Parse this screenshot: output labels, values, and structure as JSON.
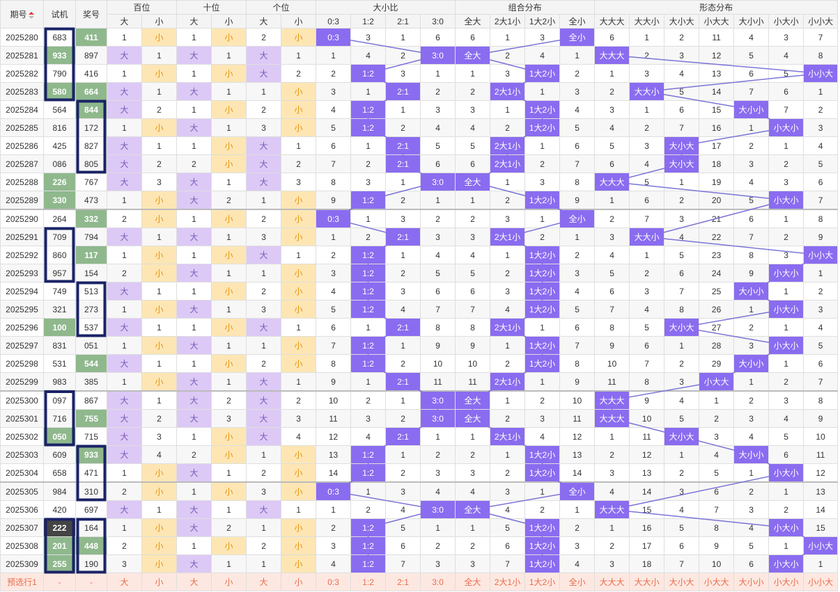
{
  "header": {
    "period": "期号",
    "trial": "试机",
    "prize": "奖号",
    "groups": {
      "hundreds": "百位",
      "tens": "十位",
      "units": "个位",
      "ratio": "大小比",
      "combo": "组合分布",
      "shape": "形态分布"
    },
    "big": "大",
    "small": "小",
    "ratio_cols": [
      "0:3",
      "1:2",
      "2:1",
      "3:0"
    ],
    "combo_cols": [
      "全大",
      "2大1小",
      "1大2小",
      "全小"
    ],
    "shape_cols": [
      "大大大",
      "大大小",
      "大小大",
      "小大大",
      "大小小",
      "小大小",
      "小小大"
    ]
  },
  "rows": [
    {
      "p": "2025280",
      "t": "683",
      "w": "411",
      "h": [
        "1",
        "小"
      ],
      "te": [
        "1",
        "小"
      ],
      "u": [
        "2",
        "小"
      ],
      "r": [
        "0:3",
        "3",
        "1",
        "6"
      ],
      "c": [
        "6",
        "1",
        "3",
        "全小"
      ],
      "s": [
        "6",
        "1",
        "2",
        "11",
        "4",
        "3",
        "7"
      ]
    },
    {
      "p": "2025281",
      "t": "933",
      "w": "897",
      "h": [
        "大",
        "1"
      ],
      "te": [
        "大",
        "1"
      ],
      "u": [
        "大",
        "1"
      ],
      "r": [
        "1",
        "4",
        "2",
        "3:0"
      ],
      "c": [
        "全大",
        "2",
        "4",
        "1"
      ],
      "s": [
        "大大大",
        "2",
        "3",
        "12",
        "5",
        "4",
        "8"
      ]
    },
    {
      "p": "2025282",
      "t": "790",
      "w": "416",
      "h": [
        "1",
        "小"
      ],
      "te": [
        "1",
        "小"
      ],
      "u": [
        "大",
        "2"
      ],
      "r": [
        "2",
        "1:2",
        "3",
        "1"
      ],
      "c": [
        "1",
        "3",
        "1大2小",
        "2"
      ],
      "s": [
        "1",
        "3",
        "4",
        "13",
        "6",
        "5",
        "小小大"
      ]
    },
    {
      "p": "2025283",
      "t": "580",
      "w": "664",
      "h": [
        "大",
        "1"
      ],
      "te": [
        "大",
        "1"
      ],
      "u": [
        "1",
        "小"
      ],
      "r": [
        "3",
        "1",
        "2:1",
        "2"
      ],
      "c": [
        "2",
        "2大1小",
        "1",
        "3"
      ],
      "s": [
        "2",
        "大大小",
        "5",
        "14",
        "7",
        "6",
        "1"
      ]
    },
    {
      "p": "2025284",
      "t": "564",
      "w": "844",
      "h": [
        "大",
        "2"
      ],
      "te": [
        "1",
        "小"
      ],
      "u": [
        "2",
        "小"
      ],
      "r": [
        "4",
        "1:2",
        "1",
        "3"
      ],
      "c": [
        "3",
        "1",
        "1大2小",
        "4"
      ],
      "s": [
        "3",
        "1",
        "6",
        "15",
        "大小小",
        "7",
        "2"
      ]
    },
    {
      "p": "2025285",
      "t": "816",
      "w": "172",
      "h": [
        "1",
        "小"
      ],
      "te": [
        "大",
        "1"
      ],
      "u": [
        "3",
        "小"
      ],
      "r": [
        "5",
        "1:2",
        "2",
        "4"
      ],
      "c": [
        "4",
        "2",
        "1大2小",
        "5"
      ],
      "s": [
        "4",
        "2",
        "7",
        "16",
        "1",
        "小大小",
        "3"
      ]
    },
    {
      "p": "2025286",
      "t": "425",
      "w": "827",
      "h": [
        "大",
        "1"
      ],
      "te": [
        "1",
        "小"
      ],
      "u": [
        "大",
        "1"
      ],
      "r": [
        "6",
        "1",
        "2:1",
        "5"
      ],
      "c": [
        "5",
        "2大1小",
        "1",
        "6"
      ],
      "s": [
        "5",
        "3",
        "大小大",
        "17",
        "2",
        "1",
        "4"
      ]
    },
    {
      "p": "2025287",
      "t": "086",
      "w": "805",
      "h": [
        "大",
        "2"
      ],
      "te": [
        "2",
        "小"
      ],
      "u": [
        "大",
        "2"
      ],
      "r": [
        "7",
        "2",
        "2:1",
        "6"
      ],
      "c": [
        "6",
        "2大1小",
        "2",
        "7"
      ],
      "s": [
        "6",
        "4",
        "大小大",
        "18",
        "3",
        "2",
        "5"
      ]
    },
    {
      "p": "2025288",
      "t": "226",
      "w": "767",
      "h": [
        "大",
        "3"
      ],
      "te": [
        "大",
        "1"
      ],
      "u": [
        "大",
        "3"
      ],
      "r": [
        "8",
        "3",
        "1",
        "3:0"
      ],
      "c": [
        "全大",
        "1",
        "3",
        "8"
      ],
      "s": [
        "大大大",
        "5",
        "1",
        "19",
        "4",
        "3",
        "6"
      ]
    },
    {
      "p": "2025289",
      "t": "330",
      "w": "473",
      "h": [
        "1",
        "小"
      ],
      "te": [
        "大",
        "2"
      ],
      "u": [
        "1",
        "小"
      ],
      "r": [
        "9",
        "1:2",
        "2",
        "1"
      ],
      "c": [
        "1",
        "2",
        "1大2小",
        "9"
      ],
      "s": [
        "1",
        "6",
        "2",
        "20",
        "5",
        "小大小",
        "7"
      ]
    },
    {
      "p": "2025290",
      "t": "264",
      "w": "332",
      "h": [
        "2",
        "小"
      ],
      "te": [
        "1",
        "小"
      ],
      "u": [
        "2",
        "小"
      ],
      "r": [
        "0:3",
        "1",
        "3",
        "2"
      ],
      "c": [
        "2",
        "3",
        "1",
        "全小"
      ],
      "s": [
        "2",
        "7",
        "3",
        "21",
        "6",
        "1",
        "8"
      ]
    },
    {
      "p": "2025291",
      "t": "709",
      "w": "794",
      "h": [
        "大",
        "1"
      ],
      "te": [
        "大",
        "1"
      ],
      "u": [
        "3",
        "小"
      ],
      "r": [
        "1",
        "2",
        "2:1",
        "3"
      ],
      "c": [
        "3",
        "2大1小",
        "2",
        "1"
      ],
      "s": [
        "3",
        "大大小",
        "4",
        "22",
        "7",
        "2",
        "9"
      ]
    },
    {
      "p": "2025292",
      "t": "860",
      "w": "117",
      "h": [
        "1",
        "小"
      ],
      "te": [
        "1",
        "小"
      ],
      "u": [
        "大",
        "1"
      ],
      "r": [
        "2",
        "1:2",
        "1",
        "4"
      ],
      "c": [
        "4",
        "1",
        "1大2小",
        "2"
      ],
      "s": [
        "4",
        "1",
        "5",
        "23",
        "8",
        "3",
        "小小大"
      ]
    },
    {
      "p": "2025293",
      "t": "957",
      "w": "154",
      "h": [
        "2",
        "小"
      ],
      "te": [
        "大",
        "1"
      ],
      "u": [
        "1",
        "小"
      ],
      "r": [
        "3",
        "1:2",
        "2",
        "5"
      ],
      "c": [
        "5",
        "2",
        "1大2小",
        "3"
      ],
      "s": [
        "5",
        "2",
        "6",
        "24",
        "9",
        "小大小",
        "1"
      ]
    },
    {
      "p": "2025294",
      "t": "749",
      "w": "513",
      "h": [
        "大",
        "1"
      ],
      "te": [
        "1",
        "小"
      ],
      "u": [
        "2",
        "小"
      ],
      "r": [
        "4",
        "1:2",
        "3",
        "6"
      ],
      "c": [
        "6",
        "3",
        "1大2小",
        "4"
      ],
      "s": [
        "6",
        "3",
        "7",
        "25",
        "大小小",
        "1",
        "2"
      ]
    },
    {
      "p": "2025295",
      "t": "321",
      "w": "273",
      "h": [
        "1",
        "小"
      ],
      "te": [
        "大",
        "1"
      ],
      "u": [
        "3",
        "小"
      ],
      "r": [
        "5",
        "1:2",
        "4",
        "7"
      ],
      "c": [
        "7",
        "4",
        "1大2小",
        "5"
      ],
      "s": [
        "7",
        "4",
        "8",
        "26",
        "1",
        "小大小",
        "3"
      ]
    },
    {
      "p": "2025296",
      "t": "100",
      "w": "537",
      "h": [
        "大",
        "1"
      ],
      "te": [
        "1",
        "小"
      ],
      "u": [
        "大",
        "1"
      ],
      "r": [
        "6",
        "1",
        "2:1",
        "8"
      ],
      "c": [
        "8",
        "2大1小",
        "1",
        "6"
      ],
      "s": [
        "8",
        "5",
        "大小大",
        "27",
        "2",
        "1",
        "4"
      ]
    },
    {
      "p": "2025297",
      "t": "831",
      "w": "051",
      "h": [
        "1",
        "小"
      ],
      "te": [
        "大",
        "1"
      ],
      "u": [
        "1",
        "小"
      ],
      "r": [
        "7",
        "1:2",
        "1",
        "9"
      ],
      "c": [
        "9",
        "1",
        "1大2小",
        "7"
      ],
      "s": [
        "9",
        "6",
        "1",
        "28",
        "3",
        "小大小",
        "5"
      ]
    },
    {
      "p": "2025298",
      "t": "531",
      "w": "544",
      "h": [
        "大",
        "1"
      ],
      "te": [
        "1",
        "小"
      ],
      "u": [
        "2",
        "小"
      ],
      "r": [
        "8",
        "1:2",
        "2",
        "10"
      ],
      "c": [
        "10",
        "2",
        "1大2小",
        "8"
      ],
      "s": [
        "10",
        "7",
        "2",
        "29",
        "大小小",
        "1",
        "6"
      ]
    },
    {
      "p": "2025299",
      "t": "983",
      "w": "385",
      "h": [
        "1",
        "小"
      ],
      "te": [
        "大",
        "1"
      ],
      "u": [
        "大",
        "1"
      ],
      "r": [
        "9",
        "1",
        "2:1",
        "11"
      ],
      "c": [
        "11",
        "2大1小",
        "1",
        "9"
      ],
      "s": [
        "11",
        "8",
        "3",
        "小大大",
        "1",
        "2",
        "7"
      ]
    },
    {
      "p": "2025300",
      "t": "097",
      "w": "867",
      "h": [
        "大",
        "1"
      ],
      "te": [
        "大",
        "2"
      ],
      "u": [
        "大",
        "2"
      ],
      "r": [
        "10",
        "2",
        "1",
        "3:0"
      ],
      "c": [
        "全大",
        "1",
        "2",
        "10"
      ],
      "s": [
        "大大大",
        "9",
        "4",
        "1",
        "2",
        "3",
        "8"
      ]
    },
    {
      "p": "2025301",
      "t": "716",
      "w": "755",
      "h": [
        "大",
        "2"
      ],
      "te": [
        "大",
        "3"
      ],
      "u": [
        "大",
        "3"
      ],
      "r": [
        "11",
        "3",
        "2",
        "3:0"
      ],
      "c": [
        "全大",
        "2",
        "3",
        "11"
      ],
      "s": [
        "大大大",
        "10",
        "5",
        "2",
        "3",
        "4",
        "9"
      ]
    },
    {
      "p": "2025302",
      "t": "050",
      "w": "715",
      "h": [
        "大",
        "3"
      ],
      "te": [
        "1",
        "小"
      ],
      "u": [
        "大",
        "4"
      ],
      "r": [
        "12",
        "4",
        "2:1",
        "1"
      ],
      "c": [
        "1",
        "2大1小",
        "4",
        "12"
      ],
      "s": [
        "1",
        "11",
        "大小大",
        "3",
        "4",
        "5",
        "10"
      ]
    },
    {
      "p": "2025303",
      "t": "609",
      "w": "933",
      "h": [
        "大",
        "4"
      ],
      "te": [
        "2",
        "小"
      ],
      "u": [
        "1",
        "小"
      ],
      "r": [
        "13",
        "1:2",
        "1",
        "2"
      ],
      "c": [
        "2",
        "1",
        "1大2小",
        "13"
      ],
      "s": [
        "2",
        "12",
        "1",
        "4",
        "大小小",
        "6",
        "11"
      ]
    },
    {
      "p": "2025304",
      "t": "658",
      "w": "471",
      "h": [
        "1",
        "小"
      ],
      "te": [
        "大",
        "1"
      ],
      "u": [
        "2",
        "小"
      ],
      "r": [
        "14",
        "1:2",
        "2",
        "3"
      ],
      "c": [
        "3",
        "2",
        "1大2小",
        "14"
      ],
      "s": [
        "3",
        "13",
        "2",
        "5",
        "1",
        "小大小",
        "12"
      ]
    },
    {
      "p": "2025305",
      "t": "984",
      "w": "310",
      "h": [
        "2",
        "小"
      ],
      "te": [
        "1",
        "小"
      ],
      "u": [
        "3",
        "小"
      ],
      "r": [
        "0:3",
        "1",
        "3",
        "4"
      ],
      "c": [
        "4",
        "3",
        "1",
        "全小"
      ],
      "s": [
        "4",
        "14",
        "3",
        "6",
        "2",
        "1",
        "13"
      ]
    },
    {
      "p": "2025306",
      "t": "420",
      "w": "697",
      "h": [
        "大",
        "1"
      ],
      "te": [
        "大",
        "1"
      ],
      "u": [
        "大",
        "1"
      ],
      "r": [
        "1",
        "2",
        "4",
        "3:0"
      ],
      "c": [
        "全大",
        "4",
        "2",
        "1"
      ],
      "s": [
        "大大大",
        "15",
        "4",
        "7",
        "3",
        "2",
        "14"
      ]
    },
    {
      "p": "2025307",
      "t": "222",
      "w": "164",
      "h": [
        "1",
        "小"
      ],
      "te": [
        "大",
        "2"
      ],
      "u": [
        "1",
        "小"
      ],
      "r": [
        "2",
        "1:2",
        "5",
        "1"
      ],
      "c": [
        "1",
        "5",
        "1大2小",
        "2"
      ],
      "s": [
        "1",
        "16",
        "5",
        "8",
        "4",
        "小大小",
        "15"
      ]
    },
    {
      "p": "2025308",
      "t": "201",
      "w": "448",
      "h": [
        "2",
        "小"
      ],
      "te": [
        "1",
        "小"
      ],
      "u": [
        "2",
        "小"
      ],
      "r": [
        "3",
        "1:2",
        "6",
        "2"
      ],
      "c": [
        "2",
        "6",
        "1大2小",
        "3"
      ],
      "s": [
        "2",
        "17",
        "6",
        "9",
        "5",
        "1",
        "小小大"
      ]
    },
    {
      "p": "2025309",
      "t": "255",
      "w": "190",
      "h": [
        "3",
        "小"
      ],
      "te": [
        "大",
        "1"
      ],
      "u": [
        "1",
        "小"
      ],
      "r": [
        "4",
        "1:2",
        "7",
        "3"
      ],
      "c": [
        "3",
        "7",
        "1大2小",
        "4"
      ],
      "s": [
        "3",
        "18",
        "7",
        "10",
        "6",
        "小大小",
        "1"
      ]
    }
  ],
  "trial_marks": {
    "green": [
      "933",
      "580",
      "226",
      "330",
      "100",
      "050",
      "201",
      "255"
    ],
    "dark": [
      "222"
    ]
  },
  "prize_marks": {
    "green": [
      "411",
      "664",
      "844",
      "332",
      "117",
      "544",
      "755",
      "933",
      "448"
    ]
  },
  "predict_row": {
    "label": "预选行1",
    "dash": "-",
    "cells": [
      "大",
      "小",
      "大",
      "小",
      "大",
      "小",
      "0:3",
      "1:2",
      "2:1",
      "3:0",
      "全大",
      "2大1小",
      "1大2小",
      "全小",
      "大大大",
      "大大小",
      "大小大",
      "小大大",
      "大小小",
      "小大小",
      "小小大"
    ]
  },
  "colors": {
    "highlight": "#8a6cf0",
    "line": "#7b74d6",
    "box": "#1a2366",
    "green": "#8fb88d"
  }
}
